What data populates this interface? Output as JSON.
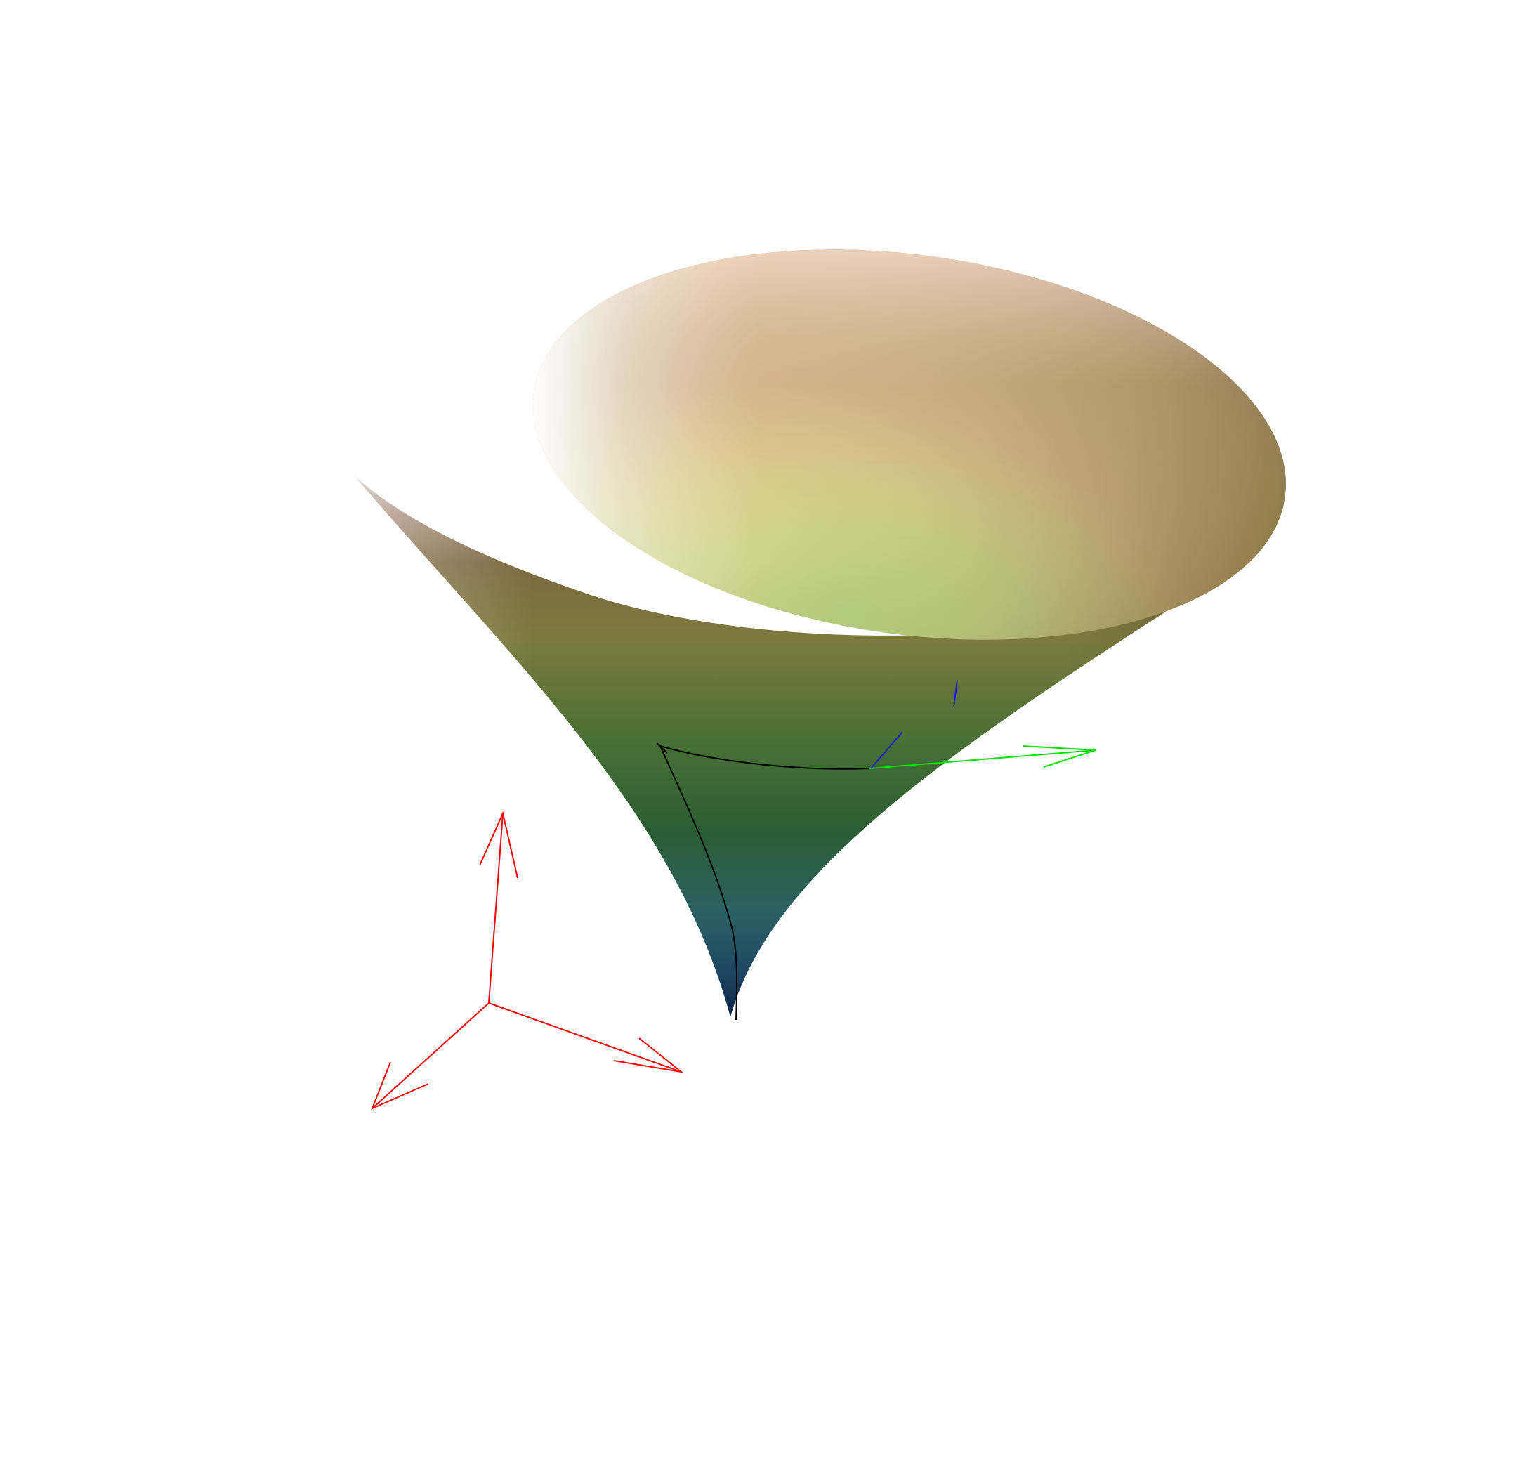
{
  "scene": {
    "background": "#ffffff",
    "surface": {
      "name": "funnel-surface",
      "colors": {
        "rim_light": "#fff4ec",
        "peach": "#f3c9a0",
        "yellow_highlight": "#dfe07a",
        "lime": "#9cc35c",
        "green": "#5f8f3f",
        "olive": "#7a6e38",
        "dark_brown": "#3e3026",
        "rim_gray": "#b9b4b2",
        "dark_green": "#2e5f30",
        "teal": "#2f6464",
        "navy": "#0f2a4a"
      }
    },
    "curve_color": "#000000",
    "frame_colors": {
      "tangent": "#00e000",
      "normal": "#1a1ad0"
    },
    "world_axes_color": "#ff0000"
  }
}
